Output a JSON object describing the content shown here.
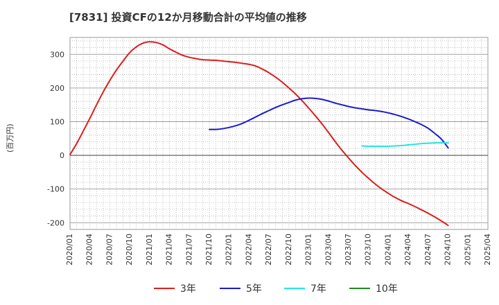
{
  "chart_data": {
    "type": "line",
    "title": "[7831]  投資CFの12か月移動合計の平均値の推移",
    "ylabel": "(百万円)",
    "xlabel": "",
    "ylim": [
      -220,
      350
    ],
    "yticks": [
      300,
      200,
      100,
      0,
      -100,
      -200
    ],
    "x_tick_labels": [
      "2020/01",
      "2020/04",
      "2020/07",
      "2020/10",
      "2021/01",
      "2021/04",
      "2021/07",
      "2021/10",
      "2022/01",
      "2022/04",
      "2022/07",
      "2022/10",
      "2023/01",
      "2023/04",
      "2023/07",
      "2023/10",
      "2024/01",
      "2024/04",
      "2024/07",
      "2024/10",
      "2025/01",
      "2025/04"
    ],
    "grid": true,
    "legend_position": "bottom",
    "series": [
      {
        "name": "3年",
        "color": "#dd1c1c",
        "x": [
          "2020/01",
          "2020/02",
          "2020/03",
          "2020/04",
          "2020/05",
          "2020/06",
          "2020/07",
          "2020/08",
          "2020/09",
          "2020/10",
          "2020/11",
          "2020/12",
          "2021/01",
          "2021/02",
          "2021/03",
          "2021/04",
          "2021/05",
          "2021/06",
          "2021/07",
          "2021/08",
          "2021/09",
          "2021/10",
          "2021/11",
          "2021/12",
          "2022/01",
          "2022/02",
          "2022/03",
          "2022/04",
          "2022/05",
          "2022/06",
          "2022/07",
          "2022/08",
          "2022/09",
          "2022/10",
          "2022/11",
          "2022/12",
          "2023/01",
          "2023/02",
          "2023/03",
          "2023/04",
          "2023/05",
          "2023/06",
          "2023/07",
          "2023/08",
          "2023/09",
          "2023/10",
          "2023/11",
          "2023/12",
          "2024/01",
          "2024/02",
          "2024/03",
          "2024/04",
          "2024/05",
          "2024/06",
          "2024/07",
          "2024/08",
          "2024/09",
          "2024/10"
        ],
        "values": [
          2,
          35,
          72,
          110,
          150,
          188,
          222,
          253,
          280,
          305,
          322,
          333,
          337,
          335,
          328,
          316,
          306,
          297,
          291,
          287,
          284,
          283,
          282,
          280,
          278,
          276,
          273,
          270,
          265,
          256,
          245,
          232,
          217,
          200,
          182,
          162,
          140,
          117,
          93,
          67,
          40,
          15,
          -8,
          -30,
          -50,
          -68,
          -85,
          -100,
          -113,
          -125,
          -135,
          -143,
          -152,
          -162,
          -172,
          -183,
          -195,
          -208
        ]
      },
      {
        "name": "5年",
        "color": "#1a1acd",
        "x": [
          "2021/10",
          "2021/11",
          "2021/12",
          "2022/01",
          "2022/02",
          "2022/03",
          "2022/04",
          "2022/05",
          "2022/06",
          "2022/07",
          "2022/08",
          "2022/09",
          "2022/10",
          "2022/11",
          "2022/12",
          "2023/01",
          "2023/02",
          "2023/03",
          "2023/04",
          "2023/05",
          "2023/06",
          "2023/07",
          "2023/08",
          "2023/09",
          "2023/10",
          "2023/11",
          "2023/12",
          "2024/01",
          "2024/02",
          "2024/03",
          "2024/04",
          "2024/05",
          "2024/06",
          "2024/07",
          "2024/08",
          "2024/09",
          "2024/10"
        ],
        "values": [
          77,
          77,
          79,
          83,
          88,
          95,
          104,
          114,
          124,
          133,
          142,
          150,
          157,
          164,
          168,
          170,
          169,
          166,
          161,
          155,
          150,
          145,
          141,
          138,
          135,
          133,
          130,
          126,
          121,
          115,
          108,
          100,
          91,
          80,
          65,
          48,
          22
        ]
      },
      {
        "name": "7年",
        "color": "#22e5e5",
        "x": [
          "2023/09",
          "2023/10",
          "2023/11",
          "2023/12",
          "2024/01",
          "2024/02",
          "2024/03",
          "2024/04",
          "2024/05",
          "2024/06",
          "2024/07",
          "2024/08",
          "2024/09",
          "2024/10"
        ],
        "values": [
          28,
          27,
          27,
          27,
          27,
          28,
          29,
          31,
          33,
          35,
          36,
          37,
          37,
          37
        ]
      },
      {
        "name": "10年",
        "color": "#1f8a1f",
        "x": [],
        "values": []
      }
    ]
  }
}
